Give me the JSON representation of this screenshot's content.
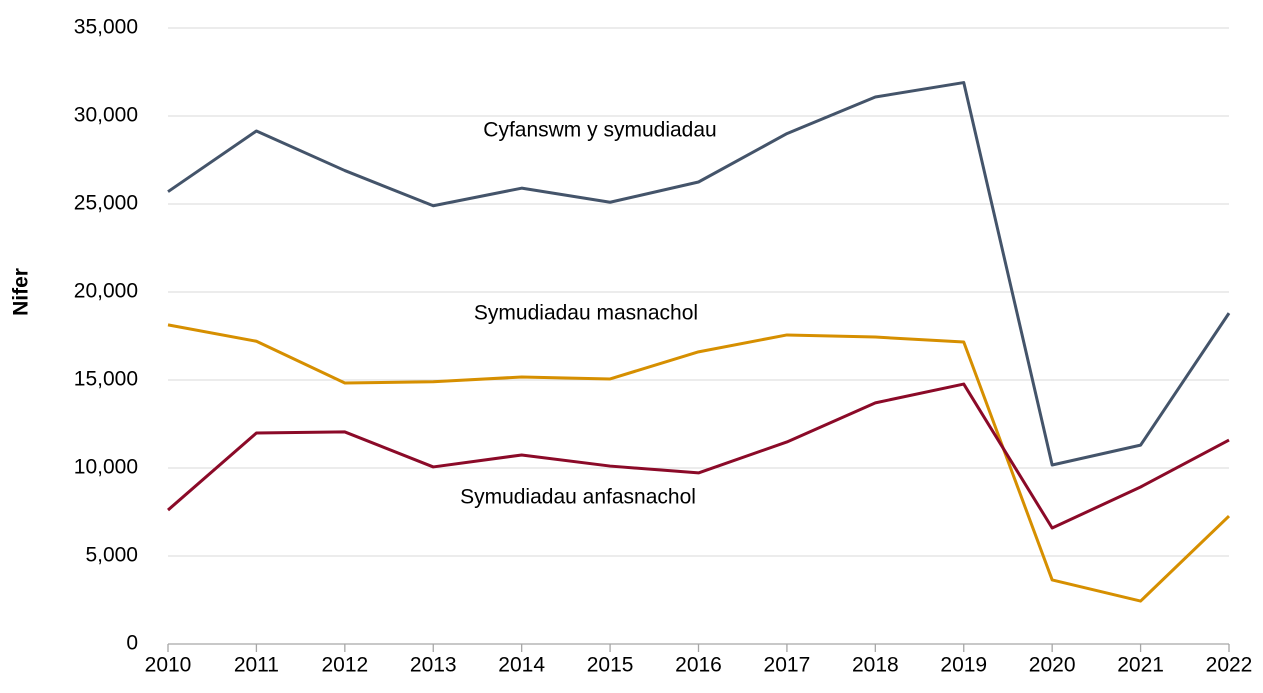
{
  "chart_data": {
    "type": "line",
    "y_label": "Nifer",
    "categories": [
      "2010",
      "2011",
      "2012",
      "2013",
      "2014",
      "2015",
      "2016",
      "2017",
      "2018",
      "2019",
      "2020",
      "2021",
      "2022"
    ],
    "series": [
      {
        "name": "Cyfanswm y symudiadau",
        "color": "#44546a",
        "values": [
          25700,
          29150,
          26900,
          24900,
          25900,
          25100,
          26250,
          29000,
          31080,
          31900,
          10170,
          11300,
          18800
        ]
      },
      {
        "name": "Symudiadau masnachol",
        "color": "#d68f00",
        "values": [
          18130,
          17200,
          14830,
          14900,
          15170,
          15060,
          16600,
          17560,
          17440,
          17160,
          3640,
          2440,
          7270
        ]
      },
      {
        "name": "Symudiadau anfasnachol",
        "color": "#8b0a28",
        "values": [
          7610,
          11990,
          12050,
          10060,
          10740,
          10110,
          9720,
          11480,
          13700,
          14770,
          6590,
          8920,
          11590
        ]
      }
    ],
    "ylim": [
      0,
      35000
    ],
    "yticks": [
      0,
      {
        "value": 5000,
        "label": "5,000"
      },
      {
        "value": 10000,
        "label": "10,000"
      },
      {
        "value": 15000,
        "label": "15,000"
      },
      {
        "value": 20000,
        "label": "20,000"
      },
      {
        "value": 25000,
        "label": "25,000"
      },
      {
        "value": 30000,
        "label": "30,000"
      },
      {
        "value": 35000,
        "label": "35,000"
      }
    ],
    "grid": true
  }
}
